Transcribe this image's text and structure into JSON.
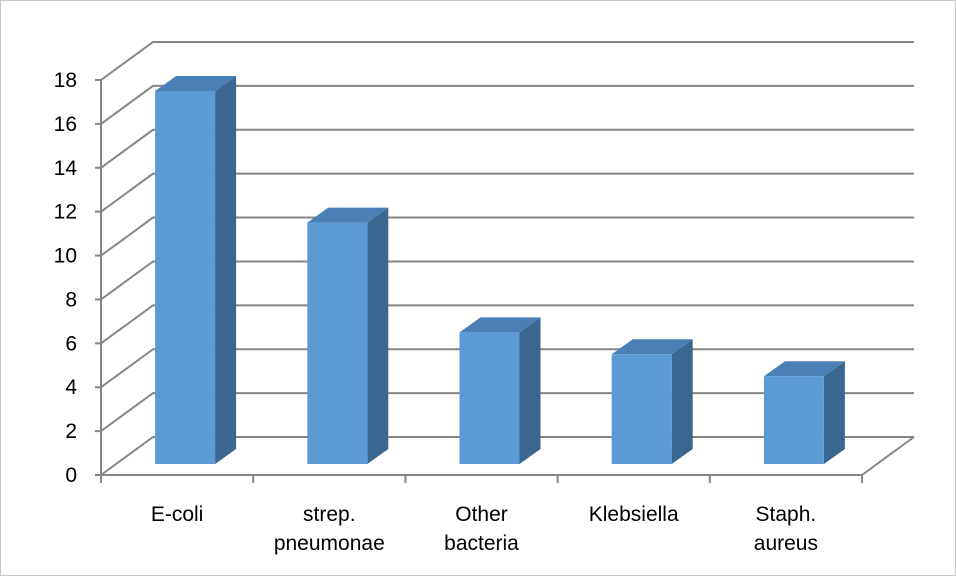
{
  "chart_data": {
    "type": "bar",
    "style": "3d-column",
    "title": "",
    "xlabel": "",
    "ylabel": "",
    "categories": [
      [
        "E-coli"
      ],
      [
        "strep.",
        "pneumonae"
      ],
      [
        "Other",
        "bacteria"
      ],
      [
        "Klebsiella"
      ],
      [
        "Staph.",
        "aureus"
      ]
    ],
    "values": [
      17,
      11,
      6,
      5,
      4
    ],
    "ylim": [
      0,
      18
    ],
    "yticks": [
      "0",
      "2",
      "4",
      "6",
      "8",
      "10",
      "12",
      "14",
      "16",
      "18"
    ],
    "grid": true,
    "legend": "none",
    "colors": {
      "bar_front": "#5b9bd5",
      "bar_side": "#3a6690",
      "bar_top": "#4a80b6",
      "gridline": "#868686",
      "axis": "#868686"
    }
  }
}
